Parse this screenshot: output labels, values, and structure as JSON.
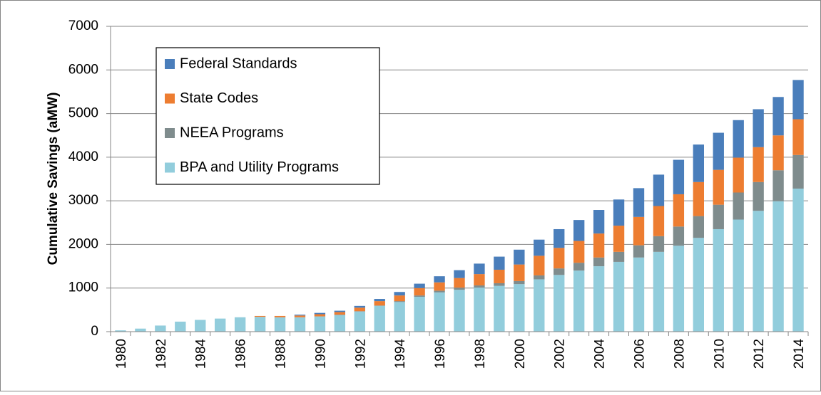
{
  "chart_data": {
    "type": "stacked_bar",
    "ylabel": "Cumulative Savings (aMW)",
    "categories": [
      "1980",
      null,
      "1982",
      null,
      "1984",
      null,
      "1986",
      null,
      "1988",
      null,
      "1990",
      null,
      "1992",
      null,
      "1994",
      null,
      "1996",
      null,
      "1998",
      null,
      "2000",
      null,
      "2002",
      null,
      "2004",
      null,
      "2006",
      null,
      "2008",
      null,
      "2010",
      null,
      "2012",
      null,
      "2014"
    ],
    "series": [
      {
        "name": "BPA and Utility Programs",
        "color": "#92cddc",
        "values": [
          30,
          70,
          140,
          230,
          270,
          300,
          330,
          340,
          330,
          330,
          350,
          380,
          460,
          590,
          680,
          800,
          900,
          960,
          1010,
          1050,
          1090,
          1200,
          1300,
          1400,
          1500,
          1600,
          1700,
          1830,
          1970,
          2150,
          2350,
          2570,
          2770,
          2990,
          3280
        ]
      },
      {
        "name": "NEEA Programs",
        "color": "#7f8c8d",
        "values": [
          0,
          0,
          0,
          0,
          0,
          0,
          0,
          0,
          0,
          0,
          0,
          10,
          10,
          10,
          20,
          30,
          40,
          50,
          50,
          60,
          70,
          90,
          150,
          180,
          200,
          230,
          280,
          360,
          440,
          500,
          560,
          620,
          660,
          710,
          770
        ]
      },
      {
        "name": "State Codes",
        "color": "#ed7d31",
        "values": [
          0,
          0,
          0,
          0,
          0,
          0,
          0,
          20,
          30,
          40,
          50,
          60,
          80,
          100,
          130,
          170,
          190,
          220,
          260,
          310,
          380,
          450,
          470,
          500,
          550,
          600,
          650,
          690,
          740,
          780,
          800,
          800,
          800,
          800,
          820
        ]
      },
      {
        "name": "Federal Standards",
        "color": "#4a7ebb",
        "values": [
          0,
          0,
          0,
          0,
          0,
          0,
          0,
          0,
          0,
          20,
          30,
          30,
          40,
          50,
          80,
          100,
          140,
          180,
          240,
          300,
          340,
          370,
          430,
          480,
          540,
          600,
          660,
          720,
          790,
          860,
          850,
          860,
          870,
          880,
          900
        ]
      }
    ],
    "ylim": [
      0,
      7000
    ],
    "yticks": [
      0,
      1000,
      2000,
      3000,
      4000,
      5000,
      6000,
      7000
    ],
    "grid": true,
    "legend": "upper left"
  }
}
